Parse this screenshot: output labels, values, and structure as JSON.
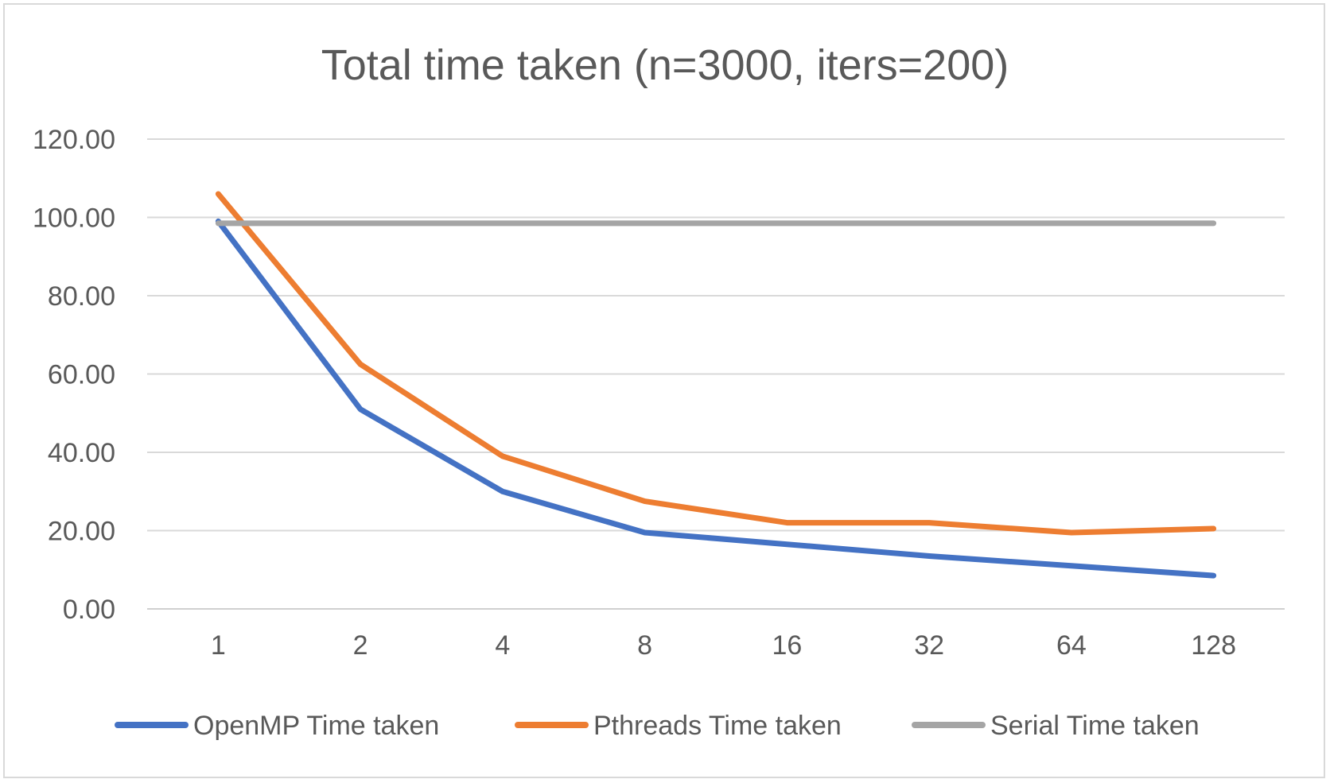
{
  "chart_data": {
    "type": "line",
    "title": "Total time taken (n=3000, iters=200)",
    "xlabel": "",
    "ylabel": "",
    "categories": [
      "1",
      "2",
      "4",
      "8",
      "16",
      "32",
      "64",
      "128"
    ],
    "ylim": [
      0,
      120
    ],
    "yticks": [
      "0.00",
      "20.00",
      "40.00",
      "60.00",
      "80.00",
      "100.00",
      "120.00"
    ],
    "grid": true,
    "legend_position": "bottom",
    "series": [
      {
        "name": "OpenMP Time taken",
        "color": "#4472C4",
        "values": [
          99.0,
          51.0,
          30.0,
          19.5,
          16.5,
          13.5,
          11.0,
          8.5
        ]
      },
      {
        "name": "Pthreads Time taken",
        "color": "#ED7D31",
        "values": [
          106.0,
          62.5,
          39.0,
          27.5,
          22.0,
          22.0,
          19.5,
          20.5
        ]
      },
      {
        "name": "Serial Time taken",
        "color": "#A5A5A5",
        "values": [
          98.5,
          98.5,
          98.5,
          98.5,
          98.5,
          98.5,
          98.5,
          98.5
        ]
      }
    ]
  }
}
